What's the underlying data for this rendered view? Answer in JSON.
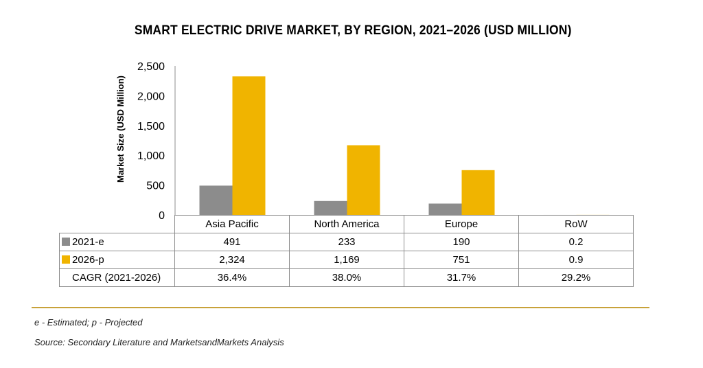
{
  "chart_data": {
    "type": "bar",
    "title": "SMART ELECTRIC DRIVE MARKET, BY REGION, 2021–2026 (USD MILLION)",
    "ylabel": "Market Size (USD Million)",
    "xlabel": "",
    "ylim": [
      0,
      2500
    ],
    "yticks": [
      0,
      500,
      1000,
      1500,
      2000,
      2500
    ],
    "ytick_labels": [
      "0",
      "500",
      "1,000",
      "1,500",
      "2,000",
      "2,500"
    ],
    "categories": [
      "Asia Pacific",
      "North America",
      "Europe",
      "RoW"
    ],
    "series": [
      {
        "name": "2021-e",
        "values": [
          491,
          233,
          190,
          0.2
        ],
        "labels": [
          "491",
          "233",
          "190",
          "0.2"
        ],
        "color": "#8c8c8c"
      },
      {
        "name": "2026-p",
        "values": [
          2324,
          1169,
          751,
          0.9
        ],
        "labels": [
          "2,324",
          "1,169",
          "751",
          "0.9"
        ],
        "color": "#f0b400"
      }
    ],
    "cagr_label": "CAGR (2021-2026)",
    "cagr": [
      "36.4%",
      "38.0%",
      "31.7%",
      "29.2%"
    ],
    "grid": false,
    "legend": "data-table"
  },
  "footnote": "e - Estimated; p - Projected",
  "source": "Source: Secondary Literature and MarketsandMarkets Analysis",
  "colors": {
    "divider": "#c8a23a",
    "axis": "#8c8c8c"
  }
}
